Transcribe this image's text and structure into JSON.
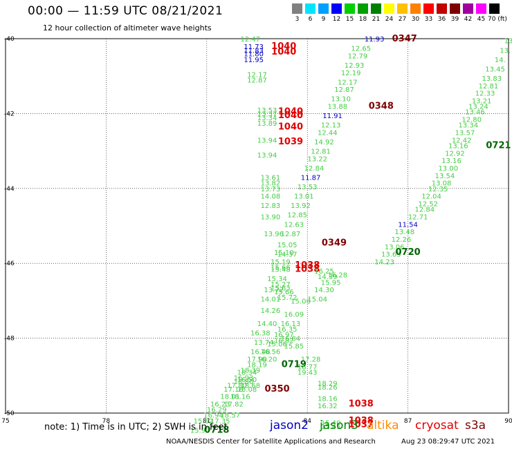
{
  "title": "00:00 — 11:59 UTC 08/21/2021",
  "subtitle": "12 hour collection of altimeter wave heights",
  "scale": {
    "labels": [
      "3",
      "6",
      "9",
      "12",
      "15",
      "18",
      "21",
      "24",
      "27",
      "30",
      "33",
      "36",
      "39",
      "42",
      "45",
      "70 (ft)"
    ],
    "colors": [
      "#808080",
      "#00e5ff",
      "#00a0ff",
      "#0000ff",
      "#00d000",
      "#00a000",
      "#008000",
      "#ffff00",
      "#ffc000",
      "#ff8000",
      "#ff0000",
      "#c00000",
      "#800000",
      "#a000a0",
      "#ff00ff",
      "#000000"
    ]
  },
  "note": "note: 1) Time is in UTC; 2) SWH is in feet",
  "legend": [
    {
      "name": "jason2",
      "color": "#0000c8"
    },
    {
      "name": "jason3",
      "color": "#008000"
    },
    {
      "name": "altika",
      "color": "#ff8c00"
    },
    {
      "name": "cryosat",
      "color": "#e00000"
    },
    {
      "name": "s3a",
      "color": "#800000"
    }
  ],
  "credit": "NOAA/NESDIS Center for Satellite Applications and Research",
  "timestamp": "Aug 23 08:29:47 UTC 2021",
  "chart_data": {
    "type": "scatter",
    "xlim": [
      75,
      90
    ],
    "ylim": [
      -50,
      -40
    ],
    "xticks": [
      "75",
      "78",
      "81",
      "84",
      "87",
      "90"
    ],
    "yticks": [
      "-40",
      "-42",
      "-44",
      "-46",
      "-48",
      "-50"
    ],
    "grid": true,
    "series_colors": {
      "green": "#44cc44",
      "dark": "#006400",
      "blue": "#0000c8",
      "red": "#e00000",
      "maroon": "#800000"
    },
    "points": [
      {
        "x": 82.3,
        "y": -40.0,
        "v": "12.47",
        "c": "green"
      },
      {
        "x": 82.4,
        "y": -40.2,
        "v": "11.73",
        "c": "blue"
      },
      {
        "x": 82.4,
        "y": -40.3,
        "v": "11.83",
        "c": "blue"
      },
      {
        "x": 82.4,
        "y": -40.4,
        "v": "11.80",
        "c": "blue"
      },
      {
        "x": 82.4,
        "y": -40.55,
        "v": "11.95",
        "c": "blue"
      },
      {
        "x": 83.3,
        "y": -40.2,
        "v": "1040",
        "c": "red"
      },
      {
        "x": 83.3,
        "y": -40.35,
        "v": "1040",
        "c": "red"
      },
      {
        "x": 82.5,
        "y": -40.95,
        "v": "12.17",
        "c": "green"
      },
      {
        "x": 82.5,
        "y": -41.1,
        "v": "12.87",
        "c": "green"
      },
      {
        "x": 86.0,
        "y": -40.0,
        "v": "11.93",
        "c": "blue"
      },
      {
        "x": 86.9,
        "y": -40.0,
        "v": "0347",
        "c": "maroon"
      },
      {
        "x": 85.6,
        "y": -40.25,
        "v": "12.65",
        "c": "green"
      },
      {
        "x": 85.5,
        "y": -40.45,
        "v": "12.79",
        "c": "green"
      },
      {
        "x": 85.4,
        "y": -40.7,
        "v": "12.93",
        "c": "green"
      },
      {
        "x": 85.3,
        "y": -40.9,
        "v": "12.19",
        "c": "green"
      },
      {
        "x": 85.2,
        "y": -41.15,
        "v": "12.17",
        "c": "green"
      },
      {
        "x": 85.1,
        "y": -41.35,
        "v": "12.87",
        "c": "green"
      },
      {
        "x": 85.0,
        "y": -41.6,
        "v": "13.10",
        "c": "green"
      },
      {
        "x": 84.9,
        "y": -41.8,
        "v": "13.88",
        "c": "green"
      },
      {
        "x": 86.2,
        "y": -41.8,
        "v": "0348",
        "c": "maroon"
      },
      {
        "x": 84.75,
        "y": -42.05,
        "v": "11.91",
        "c": "blue"
      },
      {
        "x": 84.7,
        "y": -42.3,
        "v": "12.13",
        "c": "green"
      },
      {
        "x": 84.6,
        "y": -42.5,
        "v": "12.44",
        "c": "green"
      },
      {
        "x": 84.5,
        "y": -42.75,
        "v": "14.92",
        "c": "green"
      },
      {
        "x": 84.4,
        "y": -43.0,
        "v": "12.81",
        "c": "green"
      },
      {
        "x": 84.3,
        "y": -43.2,
        "v": "13.22",
        "c": "green"
      },
      {
        "x": 84.2,
        "y": -43.45,
        "v": "12.84",
        "c": "green"
      },
      {
        "x": 84.1,
        "y": -43.7,
        "v": "11.87",
        "c": "blue"
      },
      {
        "x": 84.0,
        "y": -43.95,
        "v": "13.53",
        "c": "green"
      },
      {
        "x": 82.8,
        "y": -41.9,
        "v": "13.53",
        "c": "green"
      },
      {
        "x": 82.8,
        "y": -42.0,
        "v": "13.37",
        "c": "green"
      },
      {
        "x": 82.8,
        "y": -42.1,
        "v": "13.34",
        "c": "green"
      },
      {
        "x": 82.8,
        "y": -42.25,
        "v": "13.89",
        "c": "green"
      },
      {
        "x": 83.5,
        "y": -41.95,
        "v": "1040",
        "c": "red"
      },
      {
        "x": 83.5,
        "y": -42.05,
        "v": "1040",
        "c": "red"
      },
      {
        "x": 83.5,
        "y": -42.35,
        "v": "1040",
        "c": "red"
      },
      {
        "x": 82.8,
        "y": -42.7,
        "v": "13.94",
        "c": "green"
      },
      {
        "x": 82.8,
        "y": -43.1,
        "v": "13.94",
        "c": "green"
      },
      {
        "x": 83.5,
        "y": -42.75,
        "v": "1039",
        "c": "red"
      },
      {
        "x": 82.9,
        "y": -43.7,
        "v": "13.61",
        "c": "green"
      },
      {
        "x": 82.9,
        "y": -43.85,
        "v": "13.82",
        "c": "green"
      },
      {
        "x": 82.9,
        "y": -44.0,
        "v": "13.73",
        "c": "green"
      },
      {
        "x": 82.9,
        "y": -44.2,
        "v": "14.08",
        "c": "green"
      },
      {
        "x": 83.9,
        "y": -44.2,
        "v": "13.01",
        "c": "green"
      },
      {
        "x": 82.9,
        "y": -44.45,
        "v": "12.83",
        "c": "green"
      },
      {
        "x": 83.8,
        "y": -44.45,
        "v": "13.92",
        "c": "green"
      },
      {
        "x": 83.7,
        "y": -44.7,
        "v": "12.85",
        "c": "green"
      },
      {
        "x": 82.9,
        "y": -44.75,
        "v": "13.90",
        "c": "green"
      },
      {
        "x": 83.6,
        "y": -44.95,
        "v": "12.63",
        "c": "green"
      },
      {
        "x": 83.0,
        "y": -45.2,
        "v": "13.96",
        "c": "green"
      },
      {
        "x": 83.5,
        "y": -45.2,
        "v": "12.87",
        "c": "green"
      },
      {
        "x": 83.4,
        "y": -45.5,
        "v": "15.05",
        "c": "green"
      },
      {
        "x": 84.8,
        "y": -45.45,
        "v": "0349",
        "c": "maroon"
      },
      {
        "x": 83.3,
        "y": -45.7,
        "v": "15.10",
        "c": "green"
      },
      {
        "x": 83.4,
        "y": -45.75,
        "v": "14.37",
        "c": "green"
      },
      {
        "x": 83.2,
        "y": -45.95,
        "v": "15.19",
        "c": "green"
      },
      {
        "x": 83.2,
        "y": -46.1,
        "v": "15.66",
        "c": "green"
      },
      {
        "x": 83.2,
        "y": -46.15,
        "v": "15.48",
        "c": "green"
      },
      {
        "x": 84.0,
        "y": -46.05,
        "v": "1038",
        "c": "red"
      },
      {
        "x": 84.0,
        "y": -46.15,
        "v": "1038",
        "c": "red"
      },
      {
        "x": 83.1,
        "y": -46.4,
        "v": "15.34",
        "c": "green"
      },
      {
        "x": 83.2,
        "y": -46.55,
        "v": "15.27",
        "c": "green"
      },
      {
        "x": 83.2,
        "y": -46.65,
        "v": "15.83",
        "c": "green"
      },
      {
        "x": 83.3,
        "y": -46.75,
        "v": "15.66",
        "c": "green"
      },
      {
        "x": 83.0,
        "y": -46.7,
        "v": "13.72",
        "c": "green"
      },
      {
        "x": 82.9,
        "y": -46.95,
        "v": "14.01",
        "c": "green"
      },
      {
        "x": 83.4,
        "y": -46.9,
        "v": "15.72",
        "c": "green"
      },
      {
        "x": 83.8,
        "y": -47.0,
        "v": "15.06",
        "c": "green"
      },
      {
        "x": 84.5,
        "y": -46.7,
        "v": "14.30",
        "c": "green"
      },
      {
        "x": 84.3,
        "y": -46.95,
        "v": "15.04",
        "c": "green"
      },
      {
        "x": 84.7,
        "y": -46.5,
        "v": "15.95",
        "c": "green"
      },
      {
        "x": 84.9,
        "y": -46.3,
        "v": "16.28",
        "c": "green"
      },
      {
        "x": 84.6,
        "y": -46.35,
        "v": "14.39",
        "c": "green"
      },
      {
        "x": 84.5,
        "y": -46.2,
        "v": "16.25",
        "c": "green"
      },
      {
        "x": 82.9,
        "y": -47.25,
        "v": "14.26",
        "c": "green"
      },
      {
        "x": 83.6,
        "y": -47.35,
        "v": "16.09",
        "c": "green"
      },
      {
        "x": 82.8,
        "y": -47.6,
        "v": "14.40",
        "c": "green"
      },
      {
        "x": 83.5,
        "y": -47.6,
        "v": "16.13",
        "c": "green"
      },
      {
        "x": 83.4,
        "y": -47.75,
        "v": "16.35",
        "c": "green"
      },
      {
        "x": 83.3,
        "y": -47.9,
        "v": "16.97",
        "c": "green"
      },
      {
        "x": 82.6,
        "y": -47.85,
        "v": "16.38",
        "c": "green"
      },
      {
        "x": 83.5,
        "y": -48.0,
        "v": "16.84",
        "c": "green"
      },
      {
        "x": 83.3,
        "y": -48.05,
        "v": "16.82",
        "c": "green"
      },
      {
        "x": 82.7,
        "y": -48.1,
        "v": "13.74",
        "c": "green"
      },
      {
        "x": 83.1,
        "y": -48.15,
        "v": "15.06",
        "c": "green"
      },
      {
        "x": 83.6,
        "y": -48.2,
        "v": "15.85",
        "c": "green"
      },
      {
        "x": 82.6,
        "y": -48.35,
        "v": "16.48",
        "c": "green"
      },
      {
        "x": 82.9,
        "y": -48.35,
        "v": "16.56",
        "c": "green"
      },
      {
        "x": 82.5,
        "y": -48.55,
        "v": "17.90",
        "c": "green"
      },
      {
        "x": 82.8,
        "y": -48.55,
        "v": "16.20",
        "c": "green"
      },
      {
        "x": 84.1,
        "y": -48.55,
        "v": "17.28",
        "c": "green"
      },
      {
        "x": 82.5,
        "y": -48.7,
        "v": "18.19",
        "c": "green"
      },
      {
        "x": 83.6,
        "y": -48.7,
        "v": "0719",
        "c": "dark"
      },
      {
        "x": 84.0,
        "y": -48.75,
        "v": "18.77",
        "c": "green"
      },
      {
        "x": 82.3,
        "y": -48.85,
        "v": "18.39",
        "c": "green"
      },
      {
        "x": 82.2,
        "y": -48.9,
        "v": "18.34",
        "c": "green"
      },
      {
        "x": 84.0,
        "y": -48.9,
        "v": "19.43",
        "c": "green"
      },
      {
        "x": 82.1,
        "y": -49.05,
        "v": "16.93",
        "c": "green"
      },
      {
        "x": 82.2,
        "y": -49.1,
        "v": "16.50",
        "c": "green"
      },
      {
        "x": 82.1,
        "y": -49.15,
        "v": "18.80",
        "c": "green"
      },
      {
        "x": 81.9,
        "y": -49.25,
        "v": "17.80",
        "c": "green"
      },
      {
        "x": 82.3,
        "y": -49.25,
        "v": "18.68",
        "c": "green"
      },
      {
        "x": 84.6,
        "y": -49.2,
        "v": "18.29",
        "c": "green"
      },
      {
        "x": 84.6,
        "y": -49.3,
        "v": "18.26",
        "c": "green"
      },
      {
        "x": 81.8,
        "y": -49.35,
        "v": "17.18",
        "c": "green"
      },
      {
        "x": 82.2,
        "y": -49.35,
        "v": "18.08",
        "c": "green"
      },
      {
        "x": 83.1,
        "y": -49.35,
        "v": "0350",
        "c": "maroon"
      },
      {
        "x": 81.7,
        "y": -49.55,
        "v": "18.01",
        "c": "green"
      },
      {
        "x": 82.0,
        "y": -49.55,
        "v": "18.16",
        "c": "green"
      },
      {
        "x": 84.6,
        "y": -49.6,
        "v": "18.16",
        "c": "green"
      },
      {
        "x": 81.4,
        "y": -49.75,
        "v": "16.23",
        "c": "green"
      },
      {
        "x": 81.8,
        "y": -49.75,
        "v": "17.82",
        "c": "green"
      },
      {
        "x": 84.6,
        "y": -49.8,
        "v": "16.32",
        "c": "green"
      },
      {
        "x": 85.6,
        "y": -49.75,
        "v": "1038",
        "c": "red"
      },
      {
        "x": 81.3,
        "y": -49.9,
        "v": "16.29",
        "c": "green"
      },
      {
        "x": 81.2,
        "y": -50.05,
        "v": "16.94",
        "c": "green"
      },
      {
        "x": 81.7,
        "y": -50.05,
        "v": "18.57",
        "c": "green"
      },
      {
        "x": 84.7,
        "y": -50.25,
        "v": "15.40",
        "c": "green"
      },
      {
        "x": 85.6,
        "y": -50.2,
        "v": "1038",
        "c": "red"
      },
      {
        "x": 85.6,
        "y": -50.3,
        "v": "1037",
        "c": "red"
      },
      {
        "x": 84.7,
        "y": -50.35,
        "v": "15.45",
        "c": "green"
      },
      {
        "x": 80.9,
        "y": -50.2,
        "v": "15.62",
        "c": "green"
      },
      {
        "x": 81.4,
        "y": -50.2,
        "v": "17.35",
        "c": "green"
      },
      {
        "x": 80.8,
        "y": -50.45,
        "v": "15.93",
        "c": "green"
      },
      {
        "x": 81.3,
        "y": -50.45,
        "v": "0718",
        "c": "dark"
      },
      {
        "x": 90.0,
        "y": -40.05,
        "v": "13",
        "c": "green"
      },
      {
        "x": 89.9,
        "y": -40.3,
        "v": "13.",
        "c": "green"
      },
      {
        "x": 89.75,
        "y": -40.55,
        "v": "14.",
        "c": "green"
      },
      {
        "x": 89.6,
        "y": -40.8,
        "v": "13.45",
        "c": "green"
      },
      {
        "x": 89.5,
        "y": -41.05,
        "v": "13.83",
        "c": "green"
      },
      {
        "x": 89.4,
        "y": -41.25,
        "v": "12.81",
        "c": "green"
      },
      {
        "x": 89.3,
        "y": -41.45,
        "v": "12.33",
        "c": "green"
      },
      {
        "x": 89.2,
        "y": -41.65,
        "v": "13.21",
        "c": "green"
      },
      {
        "x": 89.1,
        "y": -41.8,
        "v": "13.24",
        "c": "green"
      },
      {
        "x": 89.0,
        "y": -41.95,
        "v": "13.46",
        "c": "green"
      },
      {
        "x": 88.9,
        "y": -42.15,
        "v": "12.80",
        "c": "green"
      },
      {
        "x": 88.8,
        "y": -42.3,
        "v": "13.34",
        "c": "green"
      },
      {
        "x": 88.7,
        "y": -42.5,
        "v": "13.57",
        "c": "green"
      },
      {
        "x": 88.6,
        "y": -42.7,
        "v": "12.42",
        "c": "green"
      },
      {
        "x": 89.7,
        "y": -42.85,
        "v": "0721",
        "c": "dark"
      },
      {
        "x": 88.5,
        "y": -42.85,
        "v": "13.16",
        "c": "green"
      },
      {
        "x": 88.4,
        "y": -43.05,
        "v": "12.92",
        "c": "green"
      },
      {
        "x": 88.3,
        "y": -43.25,
        "v": "13.16",
        "c": "green"
      },
      {
        "x": 88.2,
        "y": -43.45,
        "v": "13.00",
        "c": "green"
      },
      {
        "x": 88.1,
        "y": -43.65,
        "v": "13.54",
        "c": "green"
      },
      {
        "x": 88.0,
        "y": -43.85,
        "v": "13.08",
        "c": "green"
      },
      {
        "x": 87.9,
        "y": -44.0,
        "v": "12.35",
        "c": "green"
      },
      {
        "x": 87.7,
        "y": -44.2,
        "v": "12.04",
        "c": "green"
      },
      {
        "x": 87.6,
        "y": -44.4,
        "v": "12.52",
        "c": "green"
      },
      {
        "x": 87.5,
        "y": -44.55,
        "v": "12.84",
        "c": "green"
      },
      {
        "x": 87.3,
        "y": -44.75,
        "v": "12.71",
        "c": "green"
      },
      {
        "x": 87.0,
        "y": -44.95,
        "v": "11.54",
        "c": "blue"
      },
      {
        "x": 86.9,
        "y": -45.15,
        "v": "13.48",
        "c": "green"
      },
      {
        "x": 86.8,
        "y": -45.35,
        "v": "12.26",
        "c": "green"
      },
      {
        "x": 86.6,
        "y": -45.55,
        "v": "13.06",
        "c": "green"
      },
      {
        "x": 86.5,
        "y": -45.75,
        "v": "13.65",
        "c": "green"
      },
      {
        "x": 87.0,
        "y": -45.7,
        "v": "0720",
        "c": "dark"
      },
      {
        "x": 86.3,
        "y": -45.95,
        "v": "14.23",
        "c": "green"
      }
    ]
  }
}
